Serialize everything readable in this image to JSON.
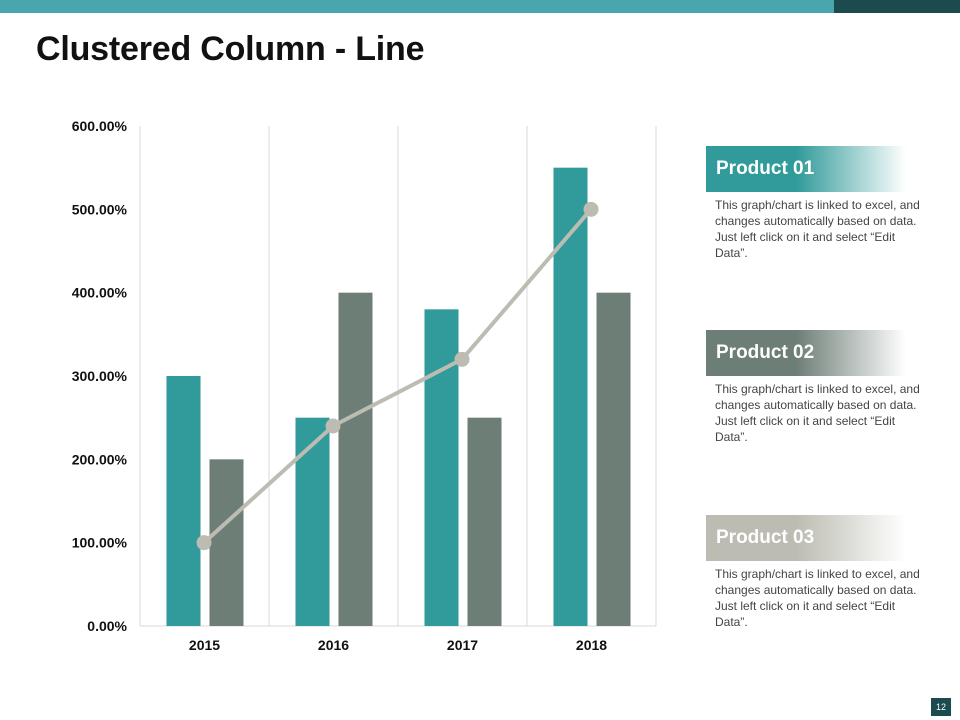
{
  "title": "Clustered Column - Line",
  "page_number": "12",
  "colors": {
    "top_bar": "#4aa6ae",
    "top_bar_dark": "#1b4a4f",
    "product01": "#319a9a",
    "product02": "#6d7e76",
    "line": "#bcbcb2",
    "grid": "#d9d9d9"
  },
  "chart_data": {
    "type": "bar",
    "title": "",
    "categories": [
      "2015",
      "2016",
      "2017",
      "2018"
    ],
    "series": [
      {
        "name": "Product 01",
        "type": "bar",
        "values": [
          300,
          250,
          380,
          550
        ]
      },
      {
        "name": "Product 02",
        "type": "bar",
        "values": [
          200,
          400,
          250,
          400
        ]
      },
      {
        "name": "Product 03",
        "type": "line",
        "values": [
          100,
          240,
          320,
          500
        ]
      }
    ],
    "ylim": [
      0,
      600
    ],
    "yticks": [
      0,
      100,
      200,
      300,
      400,
      500,
      600
    ],
    "ytick_labels": [
      "0.00%",
      "100.00%",
      "200.00%",
      "300.00%",
      "400.00%",
      "500.00%",
      "600.00%"
    ],
    "xlabel": "",
    "ylabel": "",
    "grid": "vertical"
  },
  "legend": [
    {
      "name": "Product 01",
      "description": "This graph/chart is linked to excel, and changes automatically based on data. Just left click on it and select “Edit Data”."
    },
    {
      "name": "Product 02",
      "description": "This graph/chart is linked to excel, and changes automatically based on data. Just left click on it and select “Edit Data”."
    },
    {
      "name": "Product 03",
      "description": "This graph/chart is linked to excel, and changes automatically based on data. Just left click on it and select “Edit Data”."
    }
  ]
}
